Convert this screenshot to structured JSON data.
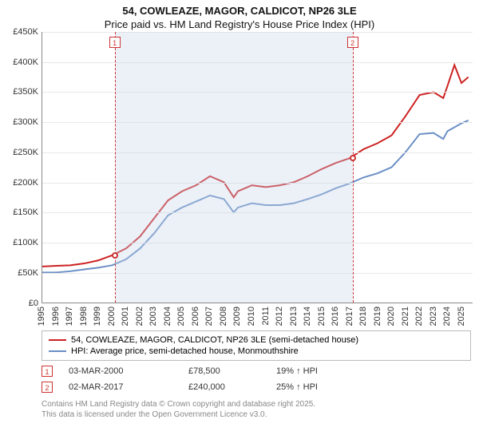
{
  "title": {
    "line1": "54, COWLEAZE, MAGOR, CALDICOT, NP26 3LE",
    "line2": "Price paid vs. HM Land Registry's House Price Index (HPI)"
  },
  "chart": {
    "type": "line",
    "background_color": "#ffffff",
    "grid_color": "#e8e8e8",
    "axis_color": "#888888",
    "text_color": "#333333",
    "label_fontsize": 11,
    "title_fontsize": 13,
    "x_min": 1995,
    "x_max": 2025.8,
    "y_min": 0,
    "y_max": 450000,
    "y_ticks": [
      0,
      50000,
      100000,
      150000,
      200000,
      250000,
      300000,
      350000,
      400000,
      450000
    ],
    "y_tick_labels": [
      "£0",
      "£50K",
      "£100K",
      "£150K",
      "£200K",
      "£250K",
      "£300K",
      "£350K",
      "£400K",
      "£450K"
    ],
    "x_ticks": [
      1995,
      1996,
      1997,
      1998,
      1999,
      2000,
      2001,
      2002,
      2003,
      2004,
      2005,
      2006,
      2007,
      2008,
      2009,
      2010,
      2011,
      2012,
      2013,
      2014,
      2015,
      2016,
      2017,
      2018,
      2019,
      2020,
      2021,
      2022,
      2023,
      2024,
      2025
    ],
    "marker_band": {
      "x_from": 2000.17,
      "x_to": 2017.17,
      "color": "rgba(200,215,235,0.35)"
    },
    "markers": [
      {
        "label": "1",
        "x": 2000.17,
        "y": 78500,
        "line_color": "#cc3333",
        "dot_border": "#cc3333",
        "dot_fill": "#ffffff"
      },
      {
        "label": "2",
        "x": 2017.17,
        "y": 240000,
        "line_color": "#cc3333",
        "dot_border": "#cc3333",
        "dot_fill": "#ffffff"
      }
    ],
    "series": [
      {
        "name": "price_paid",
        "label": "54, COWLEAZE, MAGOR, CALDICOT, NP26 3LE (semi-detached house)",
        "color": "#cc2222",
        "line_width": 2,
        "data": [
          [
            1995,
            60000
          ],
          [
            1996,
            61000
          ],
          [
            1997,
            62000
          ],
          [
            1998,
            65000
          ],
          [
            1999,
            70000
          ],
          [
            2000,
            78500
          ],
          [
            2001,
            90000
          ],
          [
            2002,
            110000
          ],
          [
            2003,
            140000
          ],
          [
            2004,
            170000
          ],
          [
            2005,
            185000
          ],
          [
            2006,
            195000
          ],
          [
            2007,
            210000
          ],
          [
            2008,
            200000
          ],
          [
            2008.7,
            175000
          ],
          [
            2009,
            185000
          ],
          [
            2010,
            195000
          ],
          [
            2011,
            192000
          ],
          [
            2012,
            195000
          ],
          [
            2013,
            200000
          ],
          [
            2014,
            210000
          ],
          [
            2015,
            222000
          ],
          [
            2016,
            232000
          ],
          [
            2017,
            240000
          ],
          [
            2018,
            255000
          ],
          [
            2019,
            265000
          ],
          [
            2020,
            278000
          ],
          [
            2021,
            310000
          ],
          [
            2022,
            345000
          ],
          [
            2023,
            350000
          ],
          [
            2023.7,
            340000
          ],
          [
            2024,
            360000
          ],
          [
            2024.5,
            395000
          ],
          [
            2025,
            365000
          ],
          [
            2025.5,
            375000
          ]
        ]
      },
      {
        "name": "hpi",
        "label": "HPI: Average price, semi-detached house, Monmouthshire",
        "color": "#6a8fc5",
        "line_width": 2,
        "data": [
          [
            1995,
            50000
          ],
          [
            1996,
            50000
          ],
          [
            1997,
            52000
          ],
          [
            1998,
            55000
          ],
          [
            1999,
            58000
          ],
          [
            2000,
            62000
          ],
          [
            2001,
            72000
          ],
          [
            2002,
            90000
          ],
          [
            2003,
            115000
          ],
          [
            2004,
            145000
          ],
          [
            2005,
            158000
          ],
          [
            2006,
            168000
          ],
          [
            2007,
            178000
          ],
          [
            2008,
            172000
          ],
          [
            2008.7,
            150000
          ],
          [
            2009,
            158000
          ],
          [
            2010,
            165000
          ],
          [
            2011,
            162000
          ],
          [
            2012,
            162000
          ],
          [
            2013,
            165000
          ],
          [
            2014,
            172000
          ],
          [
            2015,
            180000
          ],
          [
            2016,
            190000
          ],
          [
            2017,
            198000
          ],
          [
            2018,
            208000
          ],
          [
            2019,
            215000
          ],
          [
            2020,
            225000
          ],
          [
            2021,
            250000
          ],
          [
            2022,
            280000
          ],
          [
            2023,
            282000
          ],
          [
            2023.7,
            272000
          ],
          [
            2024,
            285000
          ],
          [
            2025,
            298000
          ],
          [
            2025.5,
            303000
          ]
        ]
      }
    ]
  },
  "legend": {
    "series1": "54, COWLEAZE, MAGOR, CALDICOT, NP26 3LE (semi-detached house)",
    "series2": "HPI: Average price, semi-detached house, Monmouthshire"
  },
  "sales": [
    {
      "flag": "1",
      "flag_color": "#cc3333",
      "date": "03-MAR-2000",
      "price": "£78,500",
      "delta": "19% ↑ HPI"
    },
    {
      "flag": "2",
      "flag_color": "#cc3333",
      "date": "02-MAR-2017",
      "price": "£240,000",
      "delta": "25% ↑ HPI"
    }
  ],
  "footer": {
    "line1": "Contains HM Land Registry data © Crown copyright and database right 2025.",
    "line2": "This data is licensed under the Open Government Licence v3.0."
  }
}
